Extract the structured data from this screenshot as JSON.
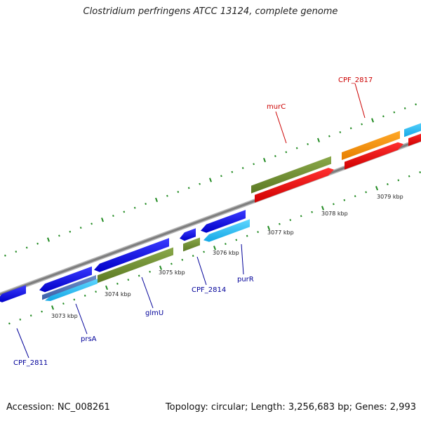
{
  "title": "Clostridium perfringens ATCC 13124, complete genome",
  "accession": "Accession: NC_008261",
  "summary": "Topology: circular; Length: 3,256,683 bp; Genes: 2,993",
  "colors": {
    "forward_label": "#cc0000",
    "reverse_label": "#000099",
    "backbone": "#8a8a8a",
    "ticks": "#228b22"
  },
  "scale_labels": [
    "3073 kbp",
    "3074 kbp",
    "3075 kbp",
    "3076 kbp",
    "3077 kbp",
    "3078 kbp",
    "3079 kbp"
  ],
  "gene_labels": [
    {
      "name": "CPF_2811",
      "strand": "reverse"
    },
    {
      "name": "prsA",
      "strand": "reverse"
    },
    {
      "name": "glmU",
      "strand": "reverse"
    },
    {
      "name": "CPF_2814",
      "strand": "reverse"
    },
    {
      "name": "purR",
      "strand": "reverse"
    },
    {
      "name": "murC",
      "strand": "forward"
    },
    {
      "name": "CPF_2817",
      "strand": "forward"
    }
  ]
}
